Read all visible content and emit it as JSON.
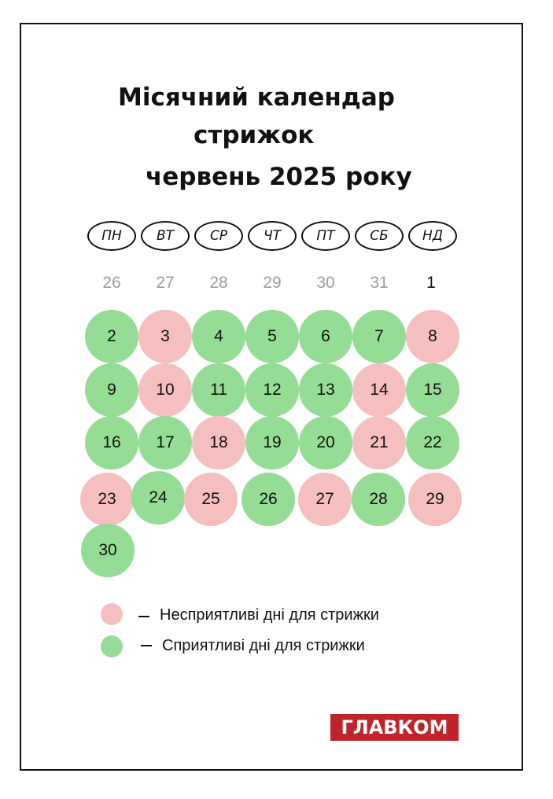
{
  "title": {
    "line1": "Місячний календар",
    "line2": "стрижок",
    "line3": "червень 2025 року"
  },
  "weekdays": [
    "ПН",
    "ВТ",
    "СР",
    "ЧТ",
    "ПТ",
    "СБ",
    "НД"
  ],
  "prev_row": [
    "26",
    "27",
    "28",
    "29",
    "30",
    "31",
    "1"
  ],
  "days": [
    {
      "label": "2",
      "status": "good"
    },
    {
      "label": "3",
      "status": "bad"
    },
    {
      "label": "4",
      "status": "good"
    },
    {
      "label": "5",
      "status": "good"
    },
    {
      "label": "6",
      "status": "good"
    },
    {
      "label": "7",
      "status": "good"
    },
    {
      "label": "8",
      "status": "bad"
    },
    {
      "label": "9",
      "status": "good"
    },
    {
      "label": "10",
      "status": "bad"
    },
    {
      "label": "11",
      "status": "good"
    },
    {
      "label": "12",
      "status": "good"
    },
    {
      "label": "13",
      "status": "good"
    },
    {
      "label": "14",
      "status": "bad"
    },
    {
      "label": "15",
      "status": "good"
    },
    {
      "label": "16",
      "status": "good"
    },
    {
      "label": "17",
      "status": "good"
    },
    {
      "label": "18",
      "status": "bad"
    },
    {
      "label": "19",
      "status": "good"
    },
    {
      "label": "20",
      "status": "good"
    },
    {
      "label": "21",
      "status": "bad"
    },
    {
      "label": "22",
      "status": "good"
    },
    {
      "label": "23",
      "status": "bad"
    },
    {
      "label": "24",
      "status": "good"
    },
    {
      "label": "25",
      "status": "bad"
    },
    {
      "label": "26",
      "status": "good"
    },
    {
      "label": "27",
      "status": "bad"
    },
    {
      "label": "28",
      "status": "good"
    },
    {
      "label": "29",
      "status": "bad"
    },
    {
      "label": "30",
      "status": "good"
    }
  ],
  "legend": {
    "bad": "Несприятливі дні для стрижки",
    "good": "Сприятливі дні для стрижки"
  },
  "colors": {
    "good": "#95dc95",
    "bad": "#f5bfbf",
    "logo_bg": "#c0242a"
  },
  "logo": "ГЛАВКОМ"
}
